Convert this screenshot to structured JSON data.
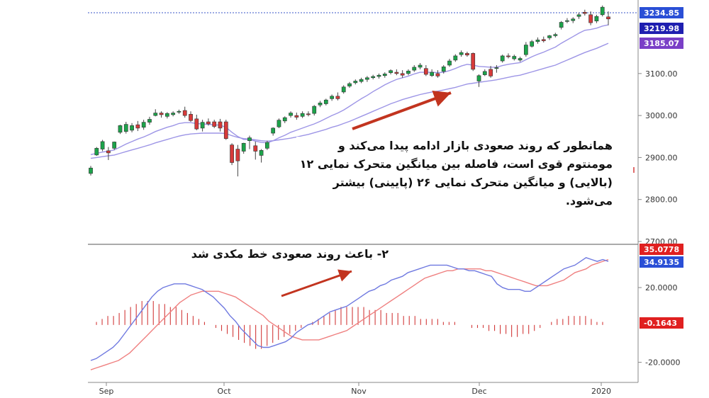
{
  "chart_data": [
    {
      "type": "candlestick",
      "title": "",
      "x_labels": [
        "Sep",
        "Oct",
        "Nov",
        "Dec",
        "2020"
      ],
      "y_ticks": [
        "3100.00",
        "3000.00",
        "2900.00",
        "2800.00",
        "2700.00"
      ],
      "ylim": [
        2700,
        3265
      ],
      "price_tags": [
        {
          "value": "3234.85",
          "color": "#2a4fd6"
        },
        {
          "value": "3219.98",
          "color": "#1f1fb0"
        },
        {
          "value": "3185.07",
          "color": "#7a3fc7"
        }
      ],
      "candles": [
        {
          "o": 2862,
          "h": 2880,
          "l": 2857,
          "c": 2875
        },
        {
          "o": 2906,
          "h": 2925,
          "l": 2904,
          "c": 2922
        },
        {
          "o": 2920,
          "h": 2942,
          "l": 2915,
          "c": 2938
        },
        {
          "o": 2916,
          "h": 2925,
          "l": 2894,
          "c": 2911
        },
        {
          "o": 2922,
          "h": 2938,
          "l": 2918,
          "c": 2937
        },
        {
          "o": 2960,
          "h": 2978,
          "l": 2956,
          "c": 2976
        },
        {
          "o": 2962,
          "h": 2985,
          "l": 2957,
          "c": 2979
        },
        {
          "o": 2965,
          "h": 2982,
          "l": 2960,
          "c": 2976
        },
        {
          "o": 2978,
          "h": 2987,
          "l": 2963,
          "c": 2970
        },
        {
          "o": 2972,
          "h": 2990,
          "l": 2966,
          "c": 2984
        },
        {
          "o": 2984,
          "h": 2997,
          "l": 2978,
          "c": 2991
        },
        {
          "o": 3000,
          "h": 3015,
          "l": 2998,
          "c": 3006
        },
        {
          "o": 3006,
          "h": 3010,
          "l": 2995,
          "c": 3002
        },
        {
          "o": 2998,
          "h": 3008,
          "l": 2993,
          "c": 3005
        },
        {
          "o": 3002,
          "h": 3010,
          "l": 2998,
          "c": 3006
        },
        {
          "o": 3008,
          "h": 3014,
          "l": 3004,
          "c": 3010
        },
        {
          "o": 3012,
          "h": 3021,
          "l": 2995,
          "c": 3000
        },
        {
          "o": 3003,
          "h": 3010,
          "l": 2985,
          "c": 2988
        },
        {
          "o": 2992,
          "h": 3002,
          "l": 2965,
          "c": 2968
        },
        {
          "o": 2970,
          "h": 2990,
          "l": 2962,
          "c": 2984
        },
        {
          "o": 2985,
          "h": 2993,
          "l": 2976,
          "c": 2980
        },
        {
          "o": 2985,
          "h": 2990,
          "l": 2970,
          "c": 2974
        },
        {
          "o": 2985,
          "h": 2992,
          "l": 2962,
          "c": 2970
        },
        {
          "o": 2985,
          "h": 2990,
          "l": 2942,
          "c": 2945
        },
        {
          "o": 2930,
          "h": 2934,
          "l": 2882,
          "c": 2888
        },
        {
          "o": 2920,
          "h": 2930,
          "l": 2855,
          "c": 2892
        },
        {
          "o": 2915,
          "h": 2935,
          "l": 2909,
          "c": 2934
        },
        {
          "o": 2940,
          "h": 2952,
          "l": 2920,
          "c": 2947
        },
        {
          "o": 2928,
          "h": 2938,
          "l": 2895,
          "c": 2915
        },
        {
          "o": 2905,
          "h": 2920,
          "l": 2888,
          "c": 2917
        },
        {
          "o": 2922,
          "h": 2940,
          "l": 2918,
          "c": 2936
        },
        {
          "o": 2958,
          "h": 2972,
          "l": 2952,
          "c": 2970
        },
        {
          "o": 2973,
          "h": 2993,
          "l": 2970,
          "c": 2989
        },
        {
          "o": 2987,
          "h": 2998,
          "l": 2982,
          "c": 2995
        },
        {
          "o": 3000,
          "h": 3010,
          "l": 2995,
          "c": 3006
        },
        {
          "o": 3000,
          "h": 3007,
          "l": 2990,
          "c": 2996
        },
        {
          "o": 2998,
          "h": 3010,
          "l": 2994,
          "c": 3005
        },
        {
          "o": 3004,
          "h": 3010,
          "l": 2998,
          "c": 3003
        },
        {
          "o": 3005,
          "h": 3025,
          "l": 3000,
          "c": 3022
        },
        {
          "o": 3025,
          "h": 3035,
          "l": 3020,
          "c": 3030
        },
        {
          "o": 3028,
          "h": 3040,
          "l": 3024,
          "c": 3037
        },
        {
          "o": 3040,
          "h": 3050,
          "l": 3035,
          "c": 3046
        },
        {
          "o": 3046,
          "h": 3055,
          "l": 3036,
          "c": 3040
        },
        {
          "o": 3056,
          "h": 3072,
          "l": 3052,
          "c": 3068
        },
        {
          "o": 3070,
          "h": 3080,
          "l": 3066,
          "c": 3076
        },
        {
          "o": 3078,
          "h": 3086,
          "l": 3074,
          "c": 3082
        },
        {
          "o": 3081,
          "h": 3090,
          "l": 3077,
          "c": 3086
        },
        {
          "o": 3086,
          "h": 3094,
          "l": 3080,
          "c": 3090
        },
        {
          "o": 3090,
          "h": 3097,
          "l": 3086,
          "c": 3093
        },
        {
          "o": 3093,
          "h": 3100,
          "l": 3088,
          "c": 3096
        },
        {
          "o": 3095,
          "h": 3103,
          "l": 3090,
          "c": 3099
        },
        {
          "o": 3102,
          "h": 3110,
          "l": 3098,
          "c": 3107
        },
        {
          "o": 3103,
          "h": 3110,
          "l": 3096,
          "c": 3100
        },
        {
          "o": 3100,
          "h": 3108,
          "l": 3090,
          "c": 3096
        },
        {
          "o": 3100,
          "h": 3110,
          "l": 3096,
          "c": 3106
        },
        {
          "o": 3108,
          "h": 3120,
          "l": 3104,
          "c": 3115
        },
        {
          "o": 3115,
          "h": 3125,
          "l": 3110,
          "c": 3120
        },
        {
          "o": 3112,
          "h": 3120,
          "l": 3094,
          "c": 3098
        },
        {
          "o": 3095,
          "h": 3110,
          "l": 3092,
          "c": 3103
        },
        {
          "o": 3100,
          "h": 3108,
          "l": 3090,
          "c": 3094
        },
        {
          "o": 3105,
          "h": 3120,
          "l": 3100,
          "c": 3116
        },
        {
          "o": 3120,
          "h": 3135,
          "l": 3116,
          "c": 3130
        },
        {
          "o": 3132,
          "h": 3146,
          "l": 3128,
          "c": 3142
        },
        {
          "o": 3145,
          "h": 3155,
          "l": 3140,
          "c": 3150
        },
        {
          "o": 3148,
          "h": 3152,
          "l": 3140,
          "c": 3144
        },
        {
          "o": 3148,
          "h": 3150,
          "l": 3106,
          "c": 3110
        },
        {
          "o": 3082,
          "h": 3098,
          "l": 3068,
          "c": 3095
        },
        {
          "o": 3097,
          "h": 3110,
          "l": 3094,
          "c": 3105
        },
        {
          "o": 3110,
          "h": 3118,
          "l": 3090,
          "c": 3094
        },
        {
          "o": 3112,
          "h": 3120,
          "l": 3102,
          "c": 3114
        },
        {
          "o": 3130,
          "h": 3145,
          "l": 3126,
          "c": 3142
        },
        {
          "o": 3142,
          "h": 3148,
          "l": 3136,
          "c": 3140
        },
        {
          "o": 3135,
          "h": 3145,
          "l": 3131,
          "c": 3141
        },
        {
          "o": 3132,
          "h": 3140,
          "l": 3128,
          "c": 3136
        },
        {
          "o": 3145,
          "h": 3175,
          "l": 3140,
          "c": 3168
        },
        {
          "o": 3165,
          "h": 3180,
          "l": 3162,
          "c": 3176
        },
        {
          "o": 3176,
          "h": 3186,
          "l": 3171,
          "c": 3180
        },
        {
          "o": 3181,
          "h": 3188,
          "l": 3174,
          "c": 3178
        },
        {
          "o": 3185,
          "h": 3192,
          "l": 3180,
          "c": 3190
        },
        {
          "o": 3190,
          "h": 3197,
          "l": 3186,
          "c": 3193
        },
        {
          "o": 3210,
          "h": 3225,
          "l": 3205,
          "c": 3222
        },
        {
          "o": 3224,
          "h": 3232,
          "l": 3220,
          "c": 3226
        },
        {
          "o": 3226,
          "h": 3234,
          "l": 3220,
          "c": 3230
        },
        {
          "o": 3236,
          "h": 3245,
          "l": 3230,
          "c": 3240
        },
        {
          "o": 3246,
          "h": 3252,
          "l": 3238,
          "c": 3243
        },
        {
          "o": 3240,
          "h": 3248,
          "l": 3215,
          "c": 3221
        },
        {
          "o": 3225,
          "h": 3240,
          "l": 3220,
          "c": 3236
        },
        {
          "o": 3240,
          "h": 3262,
          "l": 3236,
          "c": 3258
        },
        {
          "o": 3235,
          "h": 3248,
          "l": 3215,
          "c": 3230
        }
      ],
      "ema12": [
        2907,
        2910,
        2913,
        2915,
        2918,
        2925,
        2932,
        2938,
        2944,
        2949,
        2955,
        2962,
        2967,
        2972,
        2976,
        2981,
        2983,
        2983,
        2981,
        2980,
        2979,
        2978,
        2977,
        2972,
        2960,
        2950,
        2943,
        2943,
        2939,
        2936,
        2935,
        2940,
        2947,
        2953,
        2960,
        2965,
        2970,
        2975,
        2980,
        2986,
        2993,
        3000,
        3006,
        3013,
        3022,
        3031,
        3040,
        3048,
        3057,
        3065,
        3073,
        3080,
        3086,
        3090,
        3094,
        3099,
        3103,
        3103,
        3103,
        3102,
        3103,
        3107,
        3112,
        3118,
        3122,
        3120,
        3117,
        3116,
        3115,
        3115,
        3119,
        3122,
        3124,
        3126,
        3133,
        3140,
        3146,
        3151,
        3157,
        3163,
        3172,
        3180,
        3188,
        3196,
        3203,
        3205,
        3208,
        3213,
        3216
      ],
      "ema26": [
        2898,
        2900,
        2902,
        2904,
        2906,
        2910,
        2914,
        2918,
        2922,
        2926,
        2930,
        2935,
        2939,
        2943,
        2947,
        2951,
        2954,
        2956,
        2957,
        2958,
        2958,
        2958,
        2958,
        2957,
        2952,
        2948,
        2945,
        2944,
        2942,
        2940,
        2939,
        2940,
        2942,
        2944,
        2946,
        2949,
        2952,
        2955,
        2959,
        2963,
        2967,
        2972,
        2976,
        2981,
        2986,
        2992,
        2998,
        3004,
        3010,
        3016,
        3022,
        3028,
        3033,
        3038,
        3042,
        3046,
        3050,
        3053,
        3056,
        3058,
        3061,
        3064,
        3067,
        3071,
        3075,
        3077,
        3079,
        3081,
        3083,
        3085,
        3088,
        3091,
        3094,
        3096,
        3100,
        3104,
        3108,
        3112,
        3116,
        3120,
        3126,
        3132,
        3138,
        3144,
        3150,
        3155,
        3160,
        3166,
        3172
      ]
    },
    {
      "type": "line",
      "title": "",
      "y_ticks": [
        "20.0000",
        "-20.0000"
      ],
      "ylim": [
        -30,
        42
      ],
      "value_tags": [
        {
          "value": "35.0778",
          "color": "#e02020"
        },
        {
          "value": "34.9135",
          "color": "#2a4fd6"
        },
        {
          "value": "-0.1643",
          "color": "#e02020"
        }
      ],
      "series": [
        {
          "color": "#6f79e0",
          "values": [
            -19,
            -18,
            -16,
            -14,
            -12,
            -9,
            -5,
            -1,
            3,
            7,
            11,
            15,
            18,
            20,
            21,
            22,
            22,
            22,
            21,
            20,
            19,
            17,
            15,
            12,
            9,
            5,
            2,
            -2,
            -5,
            -8,
            -11,
            -12,
            -12,
            -11,
            -10,
            -9,
            -7,
            -4,
            -2,
            0,
            1,
            3,
            5,
            7,
            8,
            9,
            10,
            12,
            14,
            16,
            18,
            19,
            21,
            22,
            24,
            25,
            26,
            28,
            29,
            30,
            31,
            32,
            32,
            32,
            32,
            31,
            30,
            30,
            29,
            29,
            28,
            27,
            26,
            22,
            20,
            19,
            19,
            19,
            18,
            18,
            20,
            22,
            24,
            26,
            28,
            30,
            31,
            32,
            34,
            36,
            35,
            34,
            35,
            34
          ]
        },
        {
          "color": "#ef8080",
          "values": [
            -24,
            -23,
            -22,
            -21,
            -20,
            -19,
            -17,
            -15,
            -12,
            -9,
            -6,
            -3,
            0,
            3,
            6,
            9,
            12,
            14,
            16,
            17,
            18,
            18,
            18,
            18,
            17,
            16,
            15,
            13,
            11,
            9,
            7,
            5,
            2,
            0,
            -2,
            -4,
            -6,
            -7,
            -8,
            -8,
            -8,
            -8,
            -7,
            -6,
            -5,
            -4,
            -3,
            -1,
            1,
            3,
            5,
            7,
            9,
            11,
            13,
            15,
            17,
            19,
            21,
            23,
            25,
            26,
            27,
            28,
            29,
            29,
            30,
            30,
            30,
            30,
            30,
            29,
            29,
            28,
            27,
            26,
            25,
            24,
            23,
            22,
            21,
            21,
            21,
            22,
            23,
            24,
            26,
            28,
            29,
            30,
            32,
            33,
            34,
            35
          ]
        },
        {
          "color": "#d23a3a",
          "kind": "histogram",
          "values": [
            0,
            1,
            2,
            3,
            3,
            4,
            5,
            6,
            7,
            8,
            8,
            8,
            7,
            7,
            6,
            6,
            5,
            4,
            3,
            2,
            1,
            0,
            -1,
            -2,
            -3,
            -4,
            -5,
            -6,
            -7,
            -8,
            -8,
            -7,
            -6,
            -5,
            -4,
            -3,
            -2,
            -1,
            0,
            1,
            2,
            3,
            4,
            5,
            6,
            6,
            6,
            6,
            6,
            5,
            5,
            5,
            4,
            4,
            4,
            3,
            3,
            3,
            2,
            2,
            2,
            2,
            1,
            1,
            1,
            0,
            0,
            -1,
            -1,
            -1,
            -2,
            -2,
            -3,
            -3,
            -4,
            -4,
            -3,
            -3,
            -2,
            -1,
            0,
            1,
            2,
            2,
            3,
            3,
            3,
            3,
            2,
            1,
            1,
            0
          ]
        }
      ]
    }
  ],
  "months": [
    "Sep",
    "Oct",
    "Nov",
    "Dec",
    "2020"
  ],
  "annotations": {
    "main": "همانطور که روند صعودی بازار ادامه پیدا می‌کند و مومنتوم قوی است، فاصله بین میانگین متحرک نمایی ۱۲ (بالایی) و میانگین متحرک نمایی ۲۶ (پایینی) بیشتر می‌شود.",
    "sub": "۲- باعث روند صعودی خط مکدی شد"
  },
  "colors": {
    "up": "#1ca34a",
    "down": "#d63a3a",
    "arrow": "#c2341f",
    "ema": "#9d95e6",
    "macd": "#6f79e0",
    "signal": "#ef8080",
    "hist": "#d23a3a"
  }
}
